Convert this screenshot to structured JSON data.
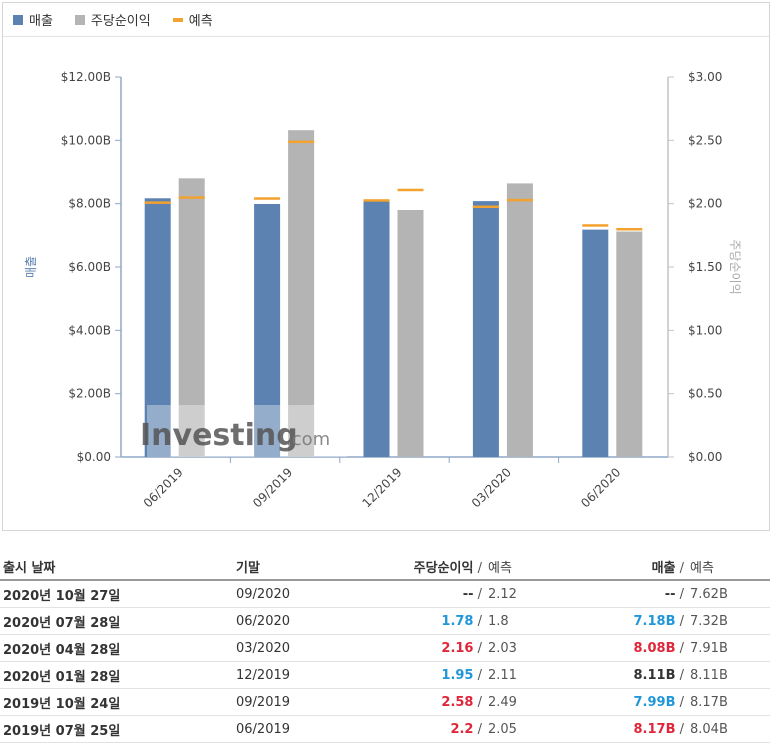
{
  "legend": {
    "revenue": "매출",
    "eps": "주당순이익",
    "forecast": "예측"
  },
  "colors": {
    "revenue": "#5b82b0",
    "eps": "#b4b4b4",
    "forecast": "#f2a22e",
    "up": "#2196d8",
    "down": "#e0263a"
  },
  "watermark": {
    "brand": "Investing",
    "suffix": ".com"
  },
  "chart_data": {
    "type": "bar",
    "categories": [
      "06/2019",
      "09/2019",
      "12/2019",
      "03/2020",
      "06/2020"
    ],
    "series": [
      {
        "name": "매출",
        "axis": "left",
        "values": [
          8.17,
          7.99,
          8.11,
          8.08,
          7.18
        ],
        "forecast": [
          8.04,
          8.17,
          8.11,
          7.91,
          7.32
        ]
      },
      {
        "name": "주당순이익",
        "axis": "right",
        "values": [
          2.2,
          2.58,
          1.95,
          2.16,
          1.78
        ],
        "forecast": [
          2.05,
          2.49,
          2.11,
          2.03,
          1.8
        ]
      }
    ],
    "ylabel_left": "매출",
    "ylabel_right": "주당순이익",
    "ylim_left": [
      0,
      12
    ],
    "ylim_right": [
      0,
      3
    ],
    "yticks_left": [
      "$0.00",
      "$2.00B",
      "$4.00B",
      "$6.00B",
      "$8.00B",
      "$10.00B",
      "$12.00B"
    ],
    "yticks_right": [
      "$0.00",
      "$0.50",
      "$1.00",
      "$1.50",
      "$2.00",
      "$2.50",
      "$3.00"
    ],
    "legend_position": "top-left",
    "grid": false
  },
  "table": {
    "headers": {
      "date": "출시 날짜",
      "period": "기말",
      "eps": "주당순이익",
      "eps_forecast": "예측",
      "revenue": "매출",
      "revenue_forecast": "예측"
    },
    "rows": [
      {
        "date": "2020년 10월 27일",
        "period": "09/2020",
        "eps": "--",
        "eps_forecast": "2.12",
        "eps_state": "same",
        "revenue": "--",
        "revenue_forecast": "7.62B",
        "revenue_state": "same"
      },
      {
        "date": "2020년 07월 28일",
        "period": "06/2020",
        "eps": "1.78",
        "eps_forecast": "1.8",
        "eps_state": "up",
        "revenue": "7.18B",
        "revenue_forecast": "7.32B",
        "revenue_state": "up"
      },
      {
        "date": "2020년 04월 28일",
        "period": "03/2020",
        "eps": "2.16",
        "eps_forecast": "2.03",
        "eps_state": "down",
        "revenue": "8.08B",
        "revenue_forecast": "7.91B",
        "revenue_state": "down"
      },
      {
        "date": "2020년 01월 28일",
        "period": "12/2019",
        "eps": "1.95",
        "eps_forecast": "2.11",
        "eps_state": "up",
        "revenue": "8.11B",
        "revenue_forecast": "8.11B",
        "revenue_state": "same"
      },
      {
        "date": "2019년 10월 24일",
        "period": "09/2019",
        "eps": "2.58",
        "eps_forecast": "2.49",
        "eps_state": "down",
        "revenue": "7.99B",
        "revenue_forecast": "8.17B",
        "revenue_state": "up"
      },
      {
        "date": "2019년 07월 25일",
        "period": "06/2019",
        "eps": "2.2",
        "eps_forecast": "2.05",
        "eps_state": "down",
        "revenue": "8.17B",
        "revenue_forecast": "8.04B",
        "revenue_state": "down"
      }
    ]
  }
}
